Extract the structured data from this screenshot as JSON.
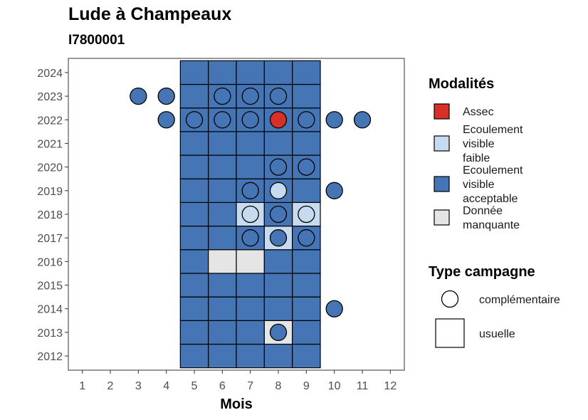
{
  "chart_data": {
    "type": "heatmap",
    "title": "Lude à Champeaux",
    "subtitle": "I7800001",
    "xlabel": "Mois",
    "ylabel": "",
    "x_ticks": [
      "1",
      "2",
      "3",
      "4",
      "5",
      "6",
      "7",
      "8",
      "9",
      "10",
      "11",
      "12"
    ],
    "y_ticks": [
      "2012",
      "2013",
      "2014",
      "2015",
      "2016",
      "2017",
      "2018",
      "2019",
      "2020",
      "2021",
      "2022",
      "2023",
      "2024"
    ],
    "xlim": [
      0.5,
      12.5
    ],
    "ylim": [
      2011.4,
      2024.6
    ],
    "colors": {
      "assec": "#d73027",
      "faible": "#c6dbef",
      "acceptable": "#4575b4",
      "manquante": "#e5e5e5"
    },
    "usuelle": [
      {
        "year": 2012,
        "cells": [
          "acceptable",
          "acceptable",
          "acceptable",
          "acceptable",
          "acceptable"
        ]
      },
      {
        "year": 2013,
        "cells": [
          "acceptable",
          "acceptable",
          "acceptable",
          "manquante",
          "acceptable"
        ]
      },
      {
        "year": 2014,
        "cells": [
          "acceptable",
          "acceptable",
          "acceptable",
          "acceptable",
          "acceptable"
        ]
      },
      {
        "year": 2015,
        "cells": [
          "acceptable",
          "acceptable",
          "acceptable",
          "acceptable",
          "acceptable"
        ]
      },
      {
        "year": 2016,
        "cells": [
          "acceptable",
          "manquante",
          "manquante",
          "acceptable",
          "acceptable"
        ]
      },
      {
        "year": 2017,
        "cells": [
          "acceptable",
          "acceptable",
          "acceptable",
          "faible",
          "acceptable"
        ]
      },
      {
        "year": 2018,
        "cells": [
          "acceptable",
          "acceptable",
          "faible",
          "acceptable",
          "faible"
        ]
      },
      {
        "year": 2019,
        "cells": [
          "acceptable",
          "acceptable",
          "acceptable",
          "acceptable",
          "acceptable"
        ]
      },
      {
        "year": 2020,
        "cells": [
          "acceptable",
          "acceptable",
          "acceptable",
          "acceptable",
          "acceptable"
        ]
      },
      {
        "year": 2021,
        "cells": [
          "acceptable",
          "acceptable",
          "acceptable",
          "acceptable",
          "acceptable"
        ]
      },
      {
        "year": 2022,
        "cells": [
          "acceptable",
          "acceptable",
          "acceptable",
          "acceptable",
          "acceptable"
        ]
      },
      {
        "year": 2023,
        "cells": [
          "acceptable",
          "acceptable",
          "acceptable",
          "acceptable",
          "acceptable"
        ]
      },
      {
        "year": 2024,
        "cells": [
          "acceptable",
          "acceptable",
          "acceptable",
          "acceptable",
          "acceptable"
        ]
      }
    ],
    "usuelle_months": [
      5,
      6,
      7,
      8,
      9
    ],
    "complementaire": [
      {
        "month": 8,
        "year": 2013,
        "mod": "acceptable"
      },
      {
        "month": 10,
        "year": 2014,
        "mod": "acceptable"
      },
      {
        "month": 7,
        "year": 2017,
        "mod": "acceptable"
      },
      {
        "month": 8,
        "year": 2017,
        "mod": "acceptable"
      },
      {
        "month": 9,
        "year": 2017,
        "mod": "acceptable"
      },
      {
        "month": 7,
        "year": 2018,
        "mod": "faible"
      },
      {
        "month": 8,
        "year": 2018,
        "mod": "acceptable"
      },
      {
        "month": 9,
        "year": 2018,
        "mod": "faible"
      },
      {
        "month": 7,
        "year": 2019,
        "mod": "acceptable"
      },
      {
        "month": 8,
        "year": 2019,
        "mod": "faible"
      },
      {
        "month": 10,
        "year": 2019,
        "mod": "acceptable"
      },
      {
        "month": 8,
        "year": 2020,
        "mod": "acceptable"
      },
      {
        "month": 9,
        "year": 2020,
        "mod": "acceptable"
      },
      {
        "month": 4,
        "year": 2022,
        "mod": "acceptable"
      },
      {
        "month": 5,
        "year": 2022,
        "mod": "acceptable"
      },
      {
        "month": 6,
        "year": 2022,
        "mod": "acceptable"
      },
      {
        "month": 7,
        "year": 2022,
        "mod": "acceptable"
      },
      {
        "month": 8,
        "year": 2022,
        "mod": "assec"
      },
      {
        "month": 9,
        "year": 2022,
        "mod": "acceptable"
      },
      {
        "month": 10,
        "year": 2022,
        "mod": "acceptable"
      },
      {
        "month": 11,
        "year": 2022,
        "mod": "acceptable"
      },
      {
        "month": 3,
        "year": 2023,
        "mod": "acceptable"
      },
      {
        "month": 4,
        "year": 2023,
        "mod": "acceptable"
      },
      {
        "month": 6,
        "year": 2023,
        "mod": "acceptable"
      },
      {
        "month": 7,
        "year": 2023,
        "mod": "acceptable"
      },
      {
        "month": 8,
        "year": 2023,
        "mod": "acceptable"
      }
    ],
    "legend_modalites": {
      "title": "Modalités",
      "items": [
        {
          "key": "assec",
          "lines": [
            "Assec"
          ]
        },
        {
          "key": "faible",
          "lines": [
            "Ecoulement",
            "visible",
            "faible"
          ]
        },
        {
          "key": "acceptable",
          "lines": [
            "Ecoulement",
            "visible",
            "acceptable"
          ]
        },
        {
          "key": "manquante",
          "lines": [
            "Donnée",
            "manquante"
          ]
        }
      ]
    },
    "legend_type": {
      "title": "Type campagne",
      "items": [
        "complémentaire",
        "usuelle"
      ]
    }
  }
}
